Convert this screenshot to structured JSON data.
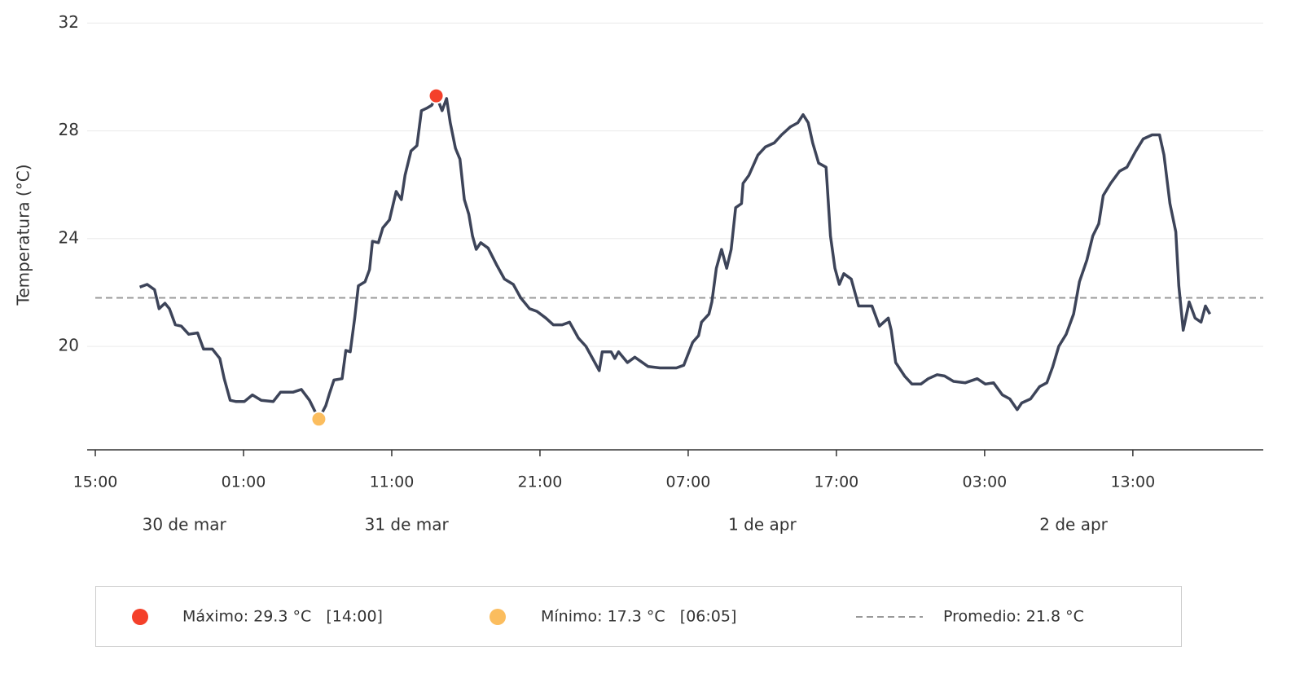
{
  "chart_data": {
    "type": "line",
    "y_label": "Temperatura (°C)",
    "x": [
      3,
      3.5,
      4,
      4.3,
      4.7,
      5,
      5.4,
      5.8,
      6.3,
      6.9,
      7.3,
      7.9,
      8.4,
      8.7,
      9.1,
      9.5,
      10.05,
      10.6,
      11.2,
      12,
      12.5,
      13.35,
      13.9,
      14.45,
      15.08,
      15.55,
      15.8,
      16.1,
      16.65,
      16.9,
      17.2,
      17.5,
      17.75,
      18.2,
      18.5,
      18.7,
      19.1,
      19.4,
      19.85,
      20.3,
      20.65,
      20.9,
      21.3,
      21.7,
      22,
      22.4,
      22.7,
      23,
      23.4,
      23.7,
      23.95,
      24.3,
      24.6,
      24.9,
      25.2,
      25.45,
      25.7,
      26,
      26.5,
      27.1,
      27.6,
      28.2,
      28.7,
      29.3,
      29.8,
      30.4,
      30.9,
      31.5,
      32,
      32.6,
      33.1,
      33.7,
      34,
      34.2,
      34.8,
      35.05,
      35.3,
      35.9,
      36.4,
      37.3,
      38.1,
      39.2,
      39.7,
      40.3,
      40.7,
      40.9,
      41.4,
      41.6,
      41.9,
      42.25,
      42.6,
      42.9,
      43.2,
      43.6,
      43.7,
      44.1,
      44.7,
      45.2,
      45.8,
      46.3,
      46.9,
      47.4,
      47.75,
      48.1,
      48.4,
      48.8,
      49.3,
      49.6,
      49.9,
      50.2,
      50.5,
      51,
      51.5,
      52.4,
      52.9,
      53.5,
      53.7,
      54,
      54.6,
      55.1,
      55.7,
      56.2,
      56.8,
      57.3,
      57.9,
      58.7,
      59.5,
      60.05,
      60.6,
      61.2,
      61.7,
      62.2,
      62.5,
      63.1,
      63.7,
      64.2,
      64.6,
      65,
      65.5,
      66,
      66.4,
      66.9,
      67.3,
      67.7,
      68,
      68.5,
      69.1,
      69.6,
      70.2,
      70.7,
      71.3,
      71.8,
      72.1,
      72.5,
      72.9,
      73.1,
      73.4,
      73.8,
      74.2,
      74.6,
      74.9,
      75.2
    ],
    "series": [
      {
        "color": "#3d4459",
        "values": [
          22.2,
          22.3,
          22.1,
          21.4,
          21.6,
          21.4,
          20.8,
          20.75,
          20.45,
          20.5,
          19.9,
          19.9,
          19.55,
          18.8,
          18,
          17.95,
          17.95,
          18.2,
          18,
          17.95,
          18.3,
          18.3,
          18.4,
          18,
          17.3,
          17.8,
          18.25,
          18.75,
          18.8,
          19.85,
          19.8,
          21.05,
          22.25,
          22.4,
          22.85,
          23.9,
          23.85,
          24.4,
          24.7,
          25.75,
          25.45,
          26.35,
          27.25,
          27.45,
          28.75,
          28.85,
          28.95,
          29.3,
          28.75,
          29.2,
          28.3,
          27.35,
          26.95,
          25.45,
          24.9,
          24.1,
          23.6,
          23.85,
          23.65,
          23,
          22.5,
          22.3,
          21.8,
          21.4,
          21.3,
          21.05,
          20.8,
          20.8,
          20.9,
          20.3,
          20,
          19.4,
          19.1,
          19.8,
          19.8,
          19.55,
          19.8,
          19.4,
          19.6,
          19.25,
          19.2,
          19.2,
          19.3,
          20.15,
          20.4,
          20.9,
          21.2,
          21.65,
          22.9,
          23.6,
          22.9,
          23.6,
          25.15,
          25.3,
          26.05,
          26.35,
          27.1,
          27.4,
          27.55,
          27.85,
          28.15,
          28.3,
          28.6,
          28.3,
          27.55,
          26.8,
          26.65,
          24.1,
          22.9,
          22.3,
          22.7,
          22.5,
          21.5,
          21.5,
          20.75,
          21.05,
          20.6,
          19.4,
          18.9,
          18.6,
          18.6,
          18.8,
          18.95,
          18.9,
          18.7,
          18.65,
          18.8,
          18.6,
          18.65,
          18.2,
          18.05,
          17.65,
          17.9,
          18.05,
          18.5,
          18.65,
          19.25,
          20,
          20.45,
          21.2,
          22.4,
          23.2,
          24.1,
          24.55,
          25.6,
          26.05,
          26.5,
          26.65,
          27.25,
          27.7,
          27.85,
          27.85,
          27.1,
          25.3,
          24.25,
          22.25,
          20.6,
          21.65,
          21.05,
          20.9,
          21.5,
          21.2
        ]
      }
    ],
    "xlim": [
      -0.55,
      78.8
    ],
    "xticks": [
      {
        "value": 0,
        "label": "15:00"
      },
      {
        "value": 10,
        "label": "01:00"
      },
      {
        "value": 20,
        "label": "11:00"
      },
      {
        "value": 30,
        "label": "21:00"
      },
      {
        "value": 40,
        "label": "07:00"
      },
      {
        "value": 50,
        "label": "17:00"
      },
      {
        "value": 60,
        "label": "03:00"
      },
      {
        "value": 70,
        "label": "13:00"
      }
    ],
    "date_labels": [
      {
        "value": 6,
        "label": "30 de mar"
      },
      {
        "value": 21,
        "label": "31 de mar"
      },
      {
        "value": 45,
        "label": "1 de apr"
      },
      {
        "value": 66,
        "label": "2 de apr"
      }
    ],
    "ylim": [
      16.16,
      32.1
    ],
    "yticks": [
      20,
      24,
      28,
      32
    ],
    "grid": true,
    "max": {
      "label": "Máximo: 29.3 °C   [14:00]",
      "value": 29.3,
      "x": 23,
      "color": "#f4402a"
    },
    "min": {
      "label": "Mínimo: 17.3 °C   [06:05]",
      "value": 17.3,
      "x": 15.08,
      "color": "#fbbd5e"
    },
    "average": {
      "label": "Promedio: 21.8 °C",
      "value": 21.8,
      "color": "#999999"
    }
  }
}
